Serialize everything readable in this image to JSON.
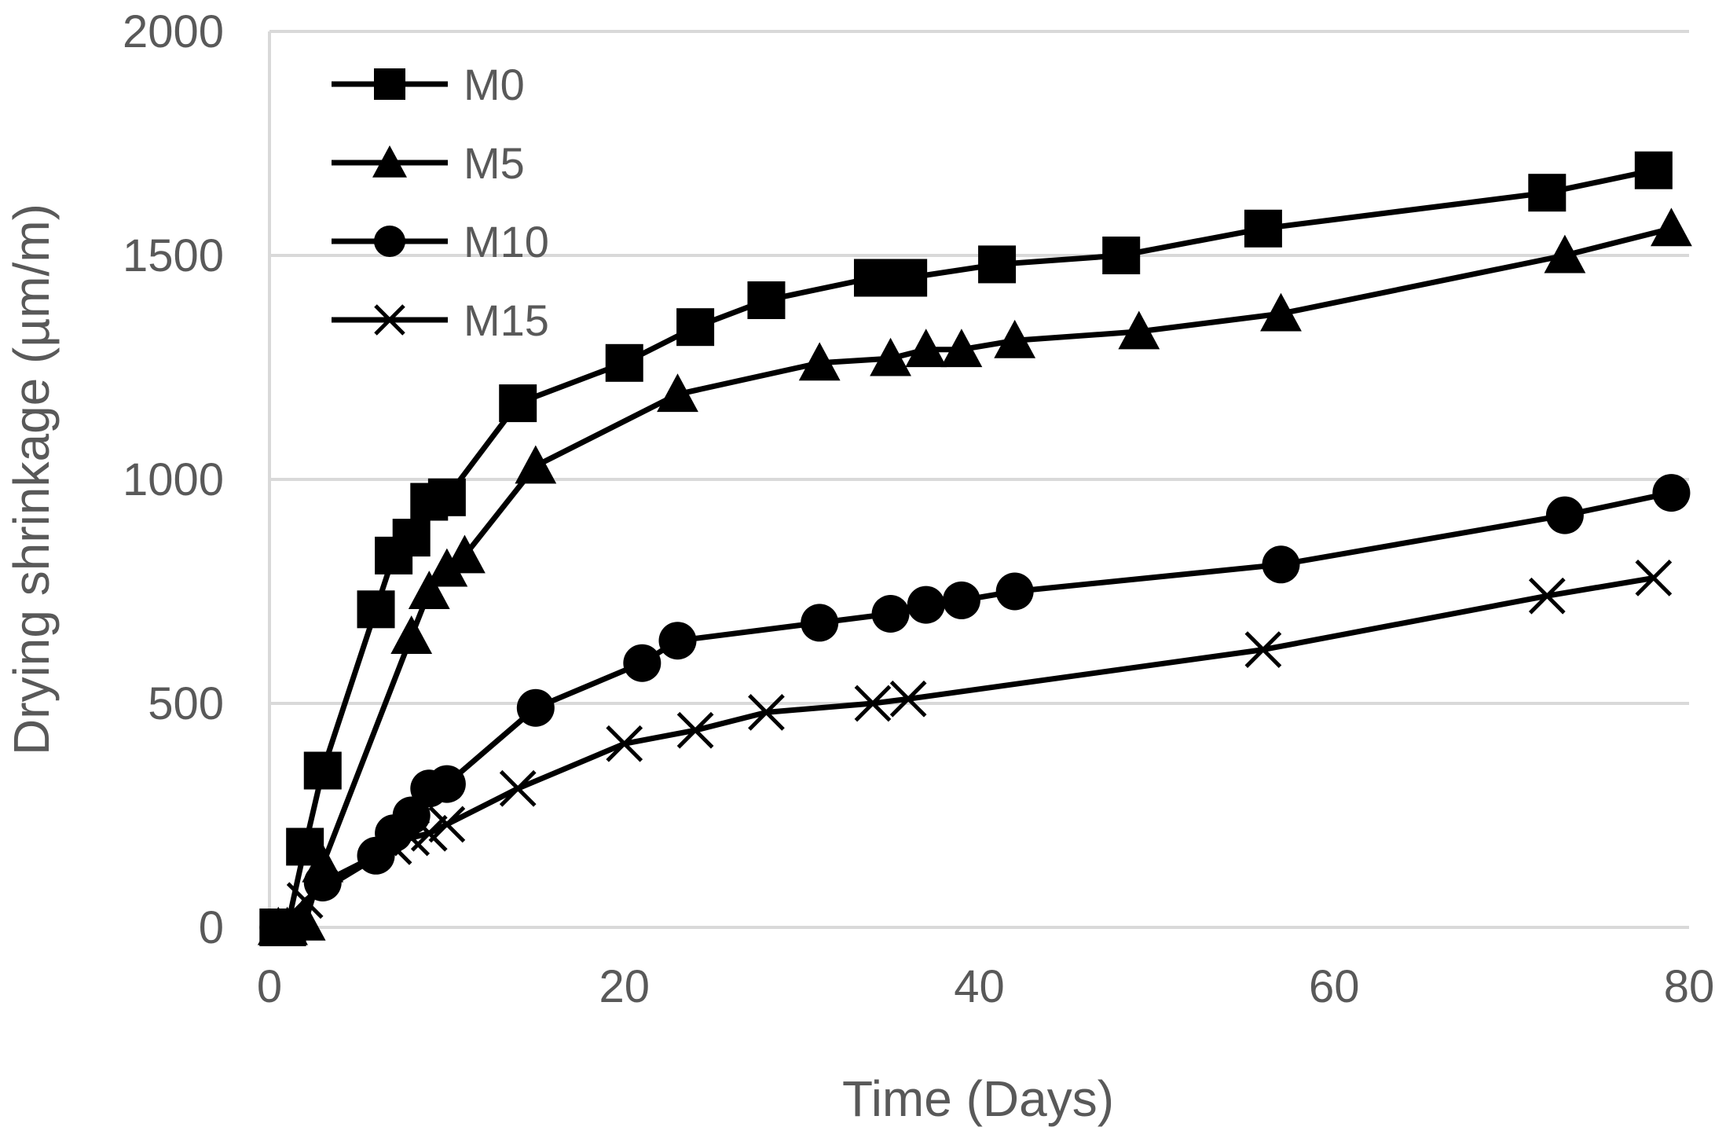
{
  "chart_data": {
    "type": "line",
    "title": "",
    "xlabel": "Time  (Days)",
    "ylabel": "Drying shrinkage (µm/m)",
    "xlim": [
      0,
      80
    ],
    "ylim": [
      0,
      2000
    ],
    "xticks": [
      0,
      20,
      40,
      60,
      80
    ],
    "yticks": [
      0,
      500,
      1000,
      1500,
      2000
    ],
    "grid": "horizontal",
    "legend_position": "top-left",
    "series": [
      {
        "name": "M0",
        "marker": "square",
        "x": [
          0.5,
          1,
          2,
          3,
          6,
          7,
          8,
          9,
          10,
          14,
          20,
          24,
          28,
          34,
          35,
          36,
          41,
          48,
          56,
          72,
          78
        ],
        "y": [
          0,
          0,
          180,
          350,
          710,
          830,
          870,
          950,
          960,
          1170,
          1260,
          1340,
          1400,
          1450,
          1450,
          1450,
          1480,
          1500,
          1560,
          1640,
          1690
        ]
      },
      {
        "name": "M5",
        "marker": "triangle",
        "x": [
          0.5,
          1,
          2,
          3,
          8,
          9,
          10,
          11,
          15,
          23,
          31,
          35,
          37,
          39,
          42,
          49,
          57,
          73,
          79
        ],
        "y": [
          0,
          0,
          10,
          140,
          650,
          750,
          800,
          830,
          1030,
          1190,
          1260,
          1270,
          1290,
          1290,
          1310,
          1330,
          1370,
          1500,
          1560
        ]
      },
      {
        "name": "M10",
        "marker": "circle",
        "x": [
          0.5,
          1,
          3,
          6,
          7,
          8,
          9,
          10,
          15,
          21,
          23,
          31,
          35,
          37,
          39,
          42,
          57,
          73,
          79
        ],
        "y": [
          0,
          0,
          100,
          160,
          210,
          250,
          310,
          320,
          490,
          590,
          640,
          680,
          700,
          720,
          730,
          750,
          810,
          920,
          970
        ]
      },
      {
        "name": "M15",
        "marker": "x",
        "x": [
          0.5,
          1,
          2,
          7,
          8,
          9,
          10,
          14,
          20,
          24,
          28,
          34,
          36,
          56,
          72,
          78
        ],
        "y": [
          0,
          0,
          60,
          180,
          200,
          210,
          230,
          310,
          410,
          440,
          480,
          500,
          510,
          620,
          740,
          780
        ]
      }
    ]
  }
}
